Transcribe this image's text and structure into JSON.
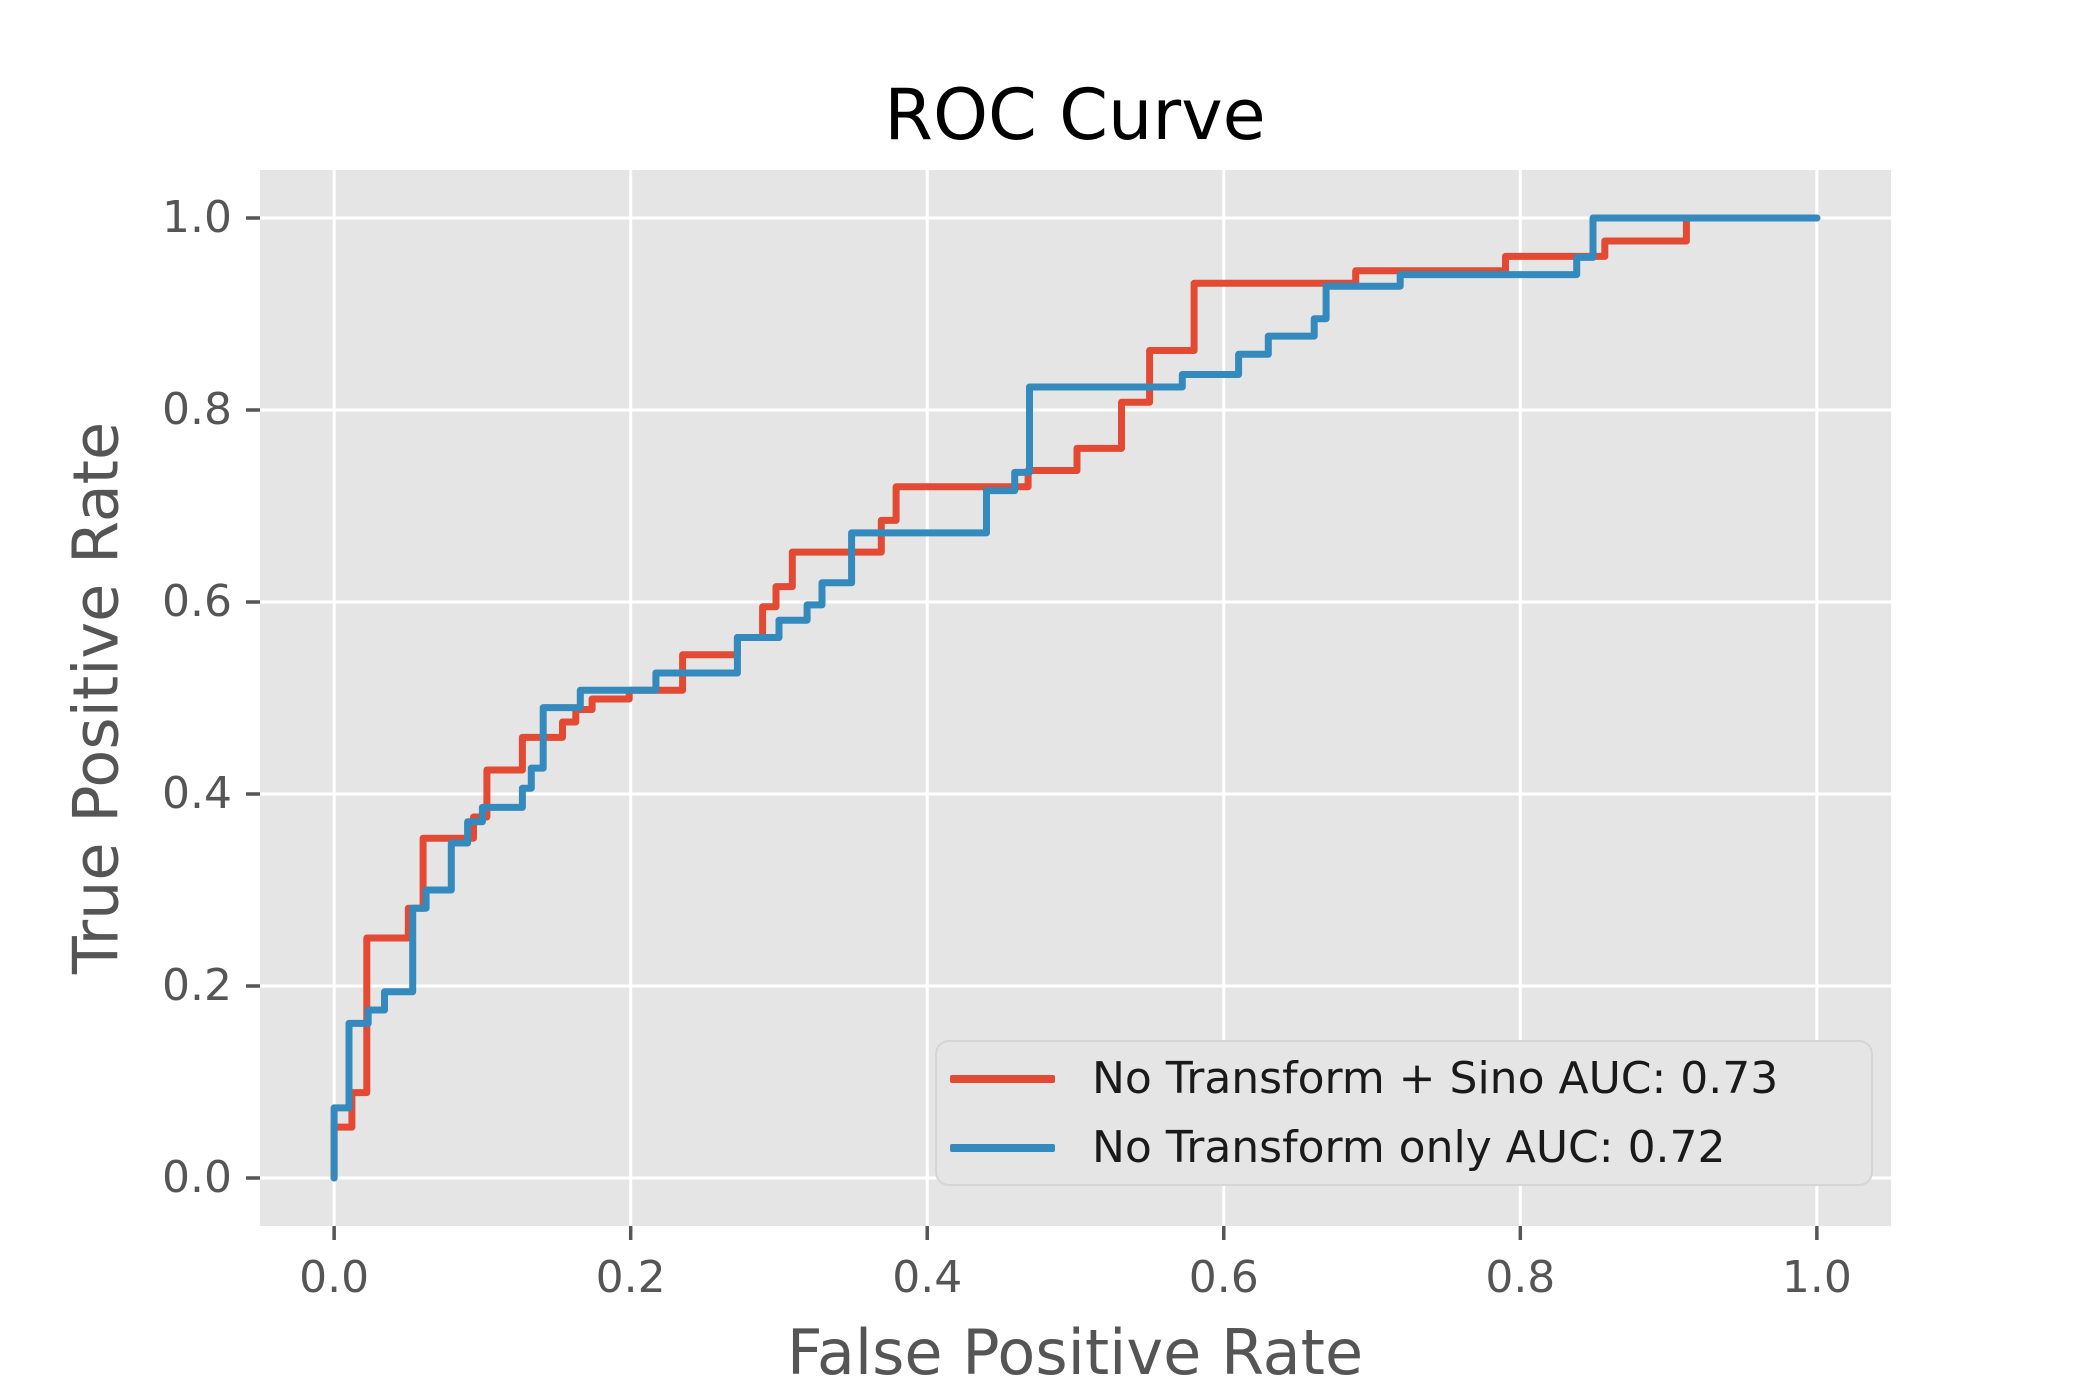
{
  "title": "ROC Curve",
  "x_axis": {
    "label": "False Positive Rate",
    "tick_labels": [
      "0.0",
      "0.2",
      "0.4",
      "0.6",
      "0.8",
      "1.0"
    ],
    "tick_values": [
      0.0,
      0.2,
      0.4,
      0.6,
      0.8,
      1.0
    ],
    "lim": [
      -0.05,
      1.05
    ]
  },
  "y_axis": {
    "label": "True Positive Rate",
    "tick_labels": [
      "0.0",
      "0.2",
      "0.4",
      "0.6",
      "0.8",
      "1.0"
    ],
    "tick_values": [
      0.0,
      0.2,
      0.4,
      0.6,
      0.8,
      1.0
    ],
    "lim": [
      -0.05,
      1.05
    ]
  },
  "legend": {
    "position": "lower right",
    "entries": [
      {
        "label": "No Transform + Sino AUC: 0.73",
        "color": "#E24A33"
      },
      {
        "label": "No Transform only AUC: 0.72",
        "color": "#348ABD"
      }
    ]
  },
  "colors": {
    "figure_background": "#ffffff",
    "axes_background": "#e5e5e5",
    "grid": "#ffffff",
    "tick_and_label_text": "#555555",
    "title_text": "#000000",
    "legend_text": "#1a1a1a",
    "legend_border": "#d5d5d5",
    "series_red": "#E24A33",
    "series_blue": "#348ABD"
  },
  "chart_data": {
    "type": "line",
    "subtype": "roc-step",
    "title": "ROC Curve",
    "xlabel": "False Positive Rate",
    "ylabel": "True Positive Rate",
    "xlim": [
      -0.05,
      1.05
    ],
    "ylim": [
      -0.05,
      1.05
    ],
    "grid": true,
    "legend_position": "lower right",
    "series": [
      {
        "name": "No Transform + Sino AUC: 0.73",
        "auc": 0.73,
        "color": "#E24A33",
        "step_points": [
          [
            0.0,
            0.0
          ],
          [
            0.0,
            0.053
          ],
          [
            0.012,
            0.089
          ],
          [
            0.022,
            0.25
          ],
          [
            0.05,
            0.281
          ],
          [
            0.06,
            0.354
          ],
          [
            0.094,
            0.376
          ],
          [
            0.103,
            0.425
          ],
          [
            0.127,
            0.459
          ],
          [
            0.154,
            0.475
          ],
          [
            0.163,
            0.488
          ],
          [
            0.174,
            0.499
          ],
          [
            0.199,
            0.508
          ],
          [
            0.235,
            0.545
          ],
          [
            0.272,
            0.563
          ],
          [
            0.289,
            0.595
          ],
          [
            0.298,
            0.616
          ],
          [
            0.309,
            0.652
          ],
          [
            0.369,
            0.685
          ],
          [
            0.379,
            0.72
          ],
          [
            0.468,
            0.737
          ],
          [
            0.501,
            0.76
          ],
          [
            0.531,
            0.808
          ],
          [
            0.55,
            0.862
          ],
          [
            0.58,
            0.932
          ],
          [
            0.689,
            0.945
          ],
          [
            0.79,
            0.96
          ],
          [
            0.857,
            0.976
          ],
          [
            0.912,
            1.0
          ],
          [
            1.0,
            1.0
          ]
        ]
      },
      {
        "name": "No Transform only AUC: 0.72",
        "auc": 0.72,
        "color": "#348ABD",
        "step_points": [
          [
            0.0,
            0.0
          ],
          [
            0.0,
            0.073
          ],
          [
            0.01,
            0.161
          ],
          [
            0.023,
            0.175
          ],
          [
            0.034,
            0.194
          ],
          [
            0.053,
            0.281
          ],
          [
            0.062,
            0.3
          ],
          [
            0.079,
            0.349
          ],
          [
            0.09,
            0.371
          ],
          [
            0.1,
            0.386
          ],
          [
            0.127,
            0.406
          ],
          [
            0.133,
            0.427
          ],
          [
            0.141,
            0.49
          ],
          [
            0.166,
            0.508
          ],
          [
            0.217,
            0.526
          ],
          [
            0.272,
            0.563
          ],
          [
            0.3,
            0.581
          ],
          [
            0.319,
            0.597
          ],
          [
            0.329,
            0.62
          ],
          [
            0.349,
            0.672
          ],
          [
            0.44,
            0.716
          ],
          [
            0.459,
            0.735
          ],
          [
            0.469,
            0.824
          ],
          [
            0.572,
            0.837
          ],
          [
            0.61,
            0.858
          ],
          [
            0.63,
            0.877
          ],
          [
            0.661,
            0.895
          ],
          [
            0.669,
            0.929
          ],
          [
            0.719,
            0.941
          ],
          [
            0.838,
            0.959
          ],
          [
            0.849,
            1.0
          ],
          [
            1.0,
            1.0
          ]
        ]
      }
    ]
  }
}
